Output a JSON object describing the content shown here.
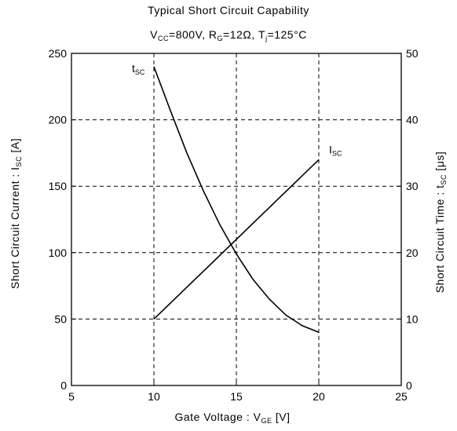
{
  "header": {
    "title": "Typical Short Circuit Capability",
    "cond_v": "V",
    "cond_v_sub": "CC",
    "cond_v_val": "=800V, R",
    "cond_r_sub": "G",
    "cond_r_val": "=12Ω, T",
    "cond_t_sub": "j",
    "cond_t_val": "=125°C"
  },
  "axes": {
    "xlabel_main": "Gate Voltage  :  V",
    "xlabel_sub": "GE",
    "xlabel_unit": "  [V]",
    "ylabel_main": "Short Circuit Current  :  I",
    "ylabel_sub": "SC",
    "ylabel_unit": "  [A]",
    "y2label_main": "Short Circuit Time  :  t",
    "y2label_sub": "SC",
    "y2label_unit": "  [μs]"
  },
  "chart_data": {
    "type": "line",
    "x_ticks": [
      5,
      10,
      15,
      20,
      25
    ],
    "y_ticks": [
      0,
      50,
      100,
      150,
      200,
      250
    ],
    "y2_ticks": [
      0,
      10,
      20,
      30,
      40,
      50
    ],
    "xlim": [
      5,
      25
    ],
    "ylim": [
      0,
      250
    ],
    "y2lim": [
      0,
      50
    ],
    "grid": true,
    "series": [
      {
        "name": "I",
        "name_sub": "SC",
        "axis": "left",
        "x": [
          10,
          20
        ],
        "y": [
          50,
          170
        ]
      },
      {
        "name": "t",
        "name_sub": "SC",
        "axis": "right",
        "x": [
          10,
          11,
          12,
          13,
          14,
          15,
          16,
          17,
          18,
          19,
          20
        ],
        "y": [
          48,
          41.4,
          35,
          29.3,
          24.2,
          19.8,
          16,
          13,
          10.6,
          9,
          8
        ]
      }
    ]
  }
}
